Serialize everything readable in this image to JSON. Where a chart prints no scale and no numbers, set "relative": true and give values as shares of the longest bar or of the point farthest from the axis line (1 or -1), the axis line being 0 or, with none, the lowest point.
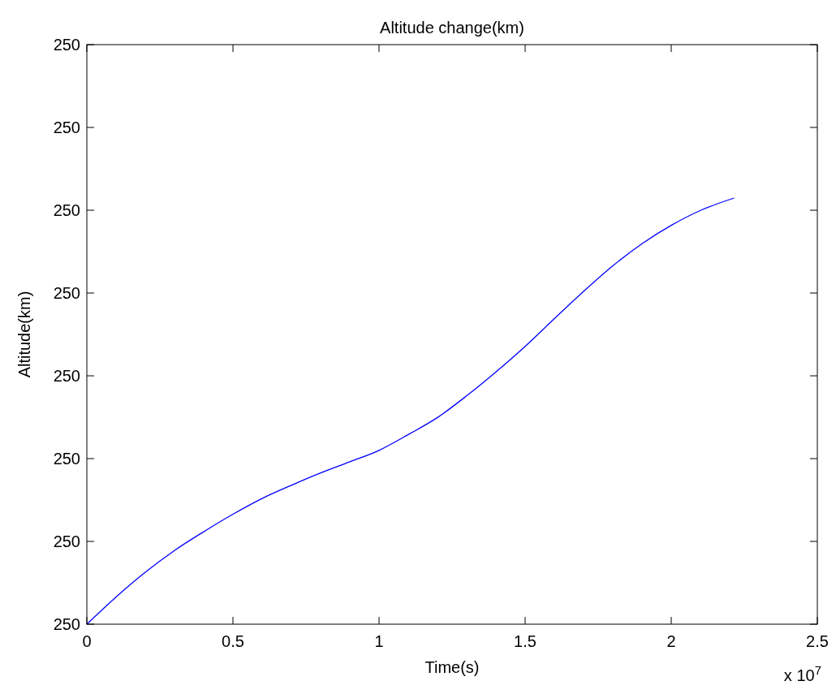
{
  "chart_data": {
    "type": "line",
    "title": "Altitude change(km)",
    "xlabel": "Time(s)",
    "ylabel": "Altitude(km)",
    "annotations": [
      "x 10$^{7}$",
      "250",
      "250",
      "250",
      "250",
      "250",
      "250",
      "250",
      "250"
    ],
    "relative": true,
    "x": [
      0,
      0.1,
      0.2,
      0.3,
      0.4,
      0.5,
      0.6,
      0.7,
      0.8,
      0.9,
      1.0,
      1.1,
      1.2,
      1.3,
      1.4,
      1.5,
      1.6,
      1.7,
      1.8,
      1.9,
      2.0,
      2.1,
      2.215
    ],
    "series": [
      {
        "color": "#0000ff",
        "values": [
          0,
          0.064,
          0.122,
          0.173,
          0.217,
          0.258,
          0.295,
          0.326,
          0.355,
          0.381,
          0.408,
          0.445,
          0.485,
          0.536,
          0.592,
          0.652,
          0.717,
          0.781,
          0.841,
          0.893,
          0.936,
          0.971,
          1
        ]
      }
    ],
    "xlim": [
      0,
      2.5
    ],
    "xticks": [
      0,
      0.5,
      1,
      1.5,
      2,
      2.5
    ],
    "marker": "none",
    "line_style": "solid"
  }
}
